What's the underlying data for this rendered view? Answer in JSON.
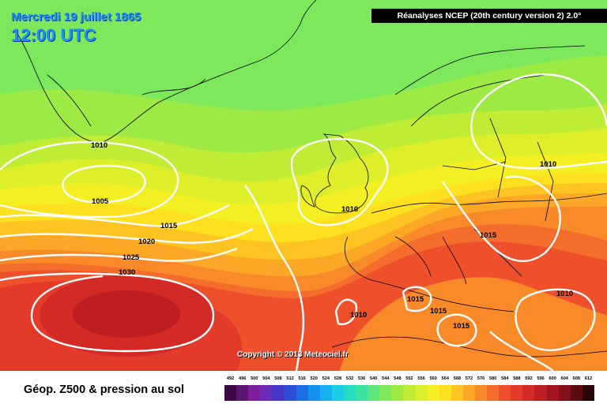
{
  "header": {
    "date": "Mercredi 19 juillet 1865",
    "time": "12:00 UTC"
  },
  "source_label": "Réanalyses NCEP (20th century version 2) 2.0°",
  "copyright": "Copyright © 2013 Meteociel.fr",
  "legend": {
    "title": "Géop. Z500 & pression au sol",
    "ticks": [
      "492",
      "496",
      "500",
      "504",
      "508",
      "512",
      "516",
      "520",
      "524",
      "528",
      "532",
      "536",
      "540",
      "544",
      "548",
      "552",
      "556",
      "560",
      "564",
      "568",
      "572",
      "576",
      "580",
      "584",
      "588",
      "592",
      "596",
      "600",
      "604",
      "608",
      "612"
    ],
    "colors": [
      "#3b0a45",
      "#5a1670",
      "#7d1f9a",
      "#6a2bb8",
      "#4636c8",
      "#2b4fd8",
      "#1a6fe6",
      "#1592f0",
      "#14b2f2",
      "#1ccde6",
      "#25dcc4",
      "#3ce3a0",
      "#5de67c",
      "#7ee85c",
      "#9eea45",
      "#bfec34",
      "#ddee2a",
      "#f4ef22",
      "#fde020",
      "#fdc422",
      "#fca826",
      "#f98a2a",
      "#f56d2c",
      "#ee502c",
      "#e33a2a",
      "#d32a26",
      "#bd1e22",
      "#a3151e",
      "#86101a",
      "#5e0a12",
      "#2a0608"
    ]
  },
  "pressure_labels": [
    {
      "id": "iso-1010-greenland",
      "text": "1010"
    },
    {
      "id": "iso-1005",
      "text": "1005"
    },
    {
      "id": "iso-1015-atl",
      "text": "1015"
    },
    {
      "id": "iso-1020",
      "text": "1020"
    },
    {
      "id": "iso-1025",
      "text": "1025"
    },
    {
      "id": "iso-1030",
      "text": "1030"
    },
    {
      "id": "iso-1010-uk",
      "text": "1010"
    },
    {
      "id": "iso-1010-scand",
      "text": "1010"
    },
    {
      "id": "iso-1015-europe",
      "text": "1015"
    },
    {
      "id": "iso-1015-med-a",
      "text": "1015"
    },
    {
      "id": "iso-1015-med-b",
      "text": "1015"
    },
    {
      "id": "iso-1015-med-c",
      "text": "1015"
    },
    {
      "id": "iso-1010-iberia",
      "text": "1010"
    },
    {
      "id": "iso-1010-east",
      "text": "1010"
    }
  ]
}
